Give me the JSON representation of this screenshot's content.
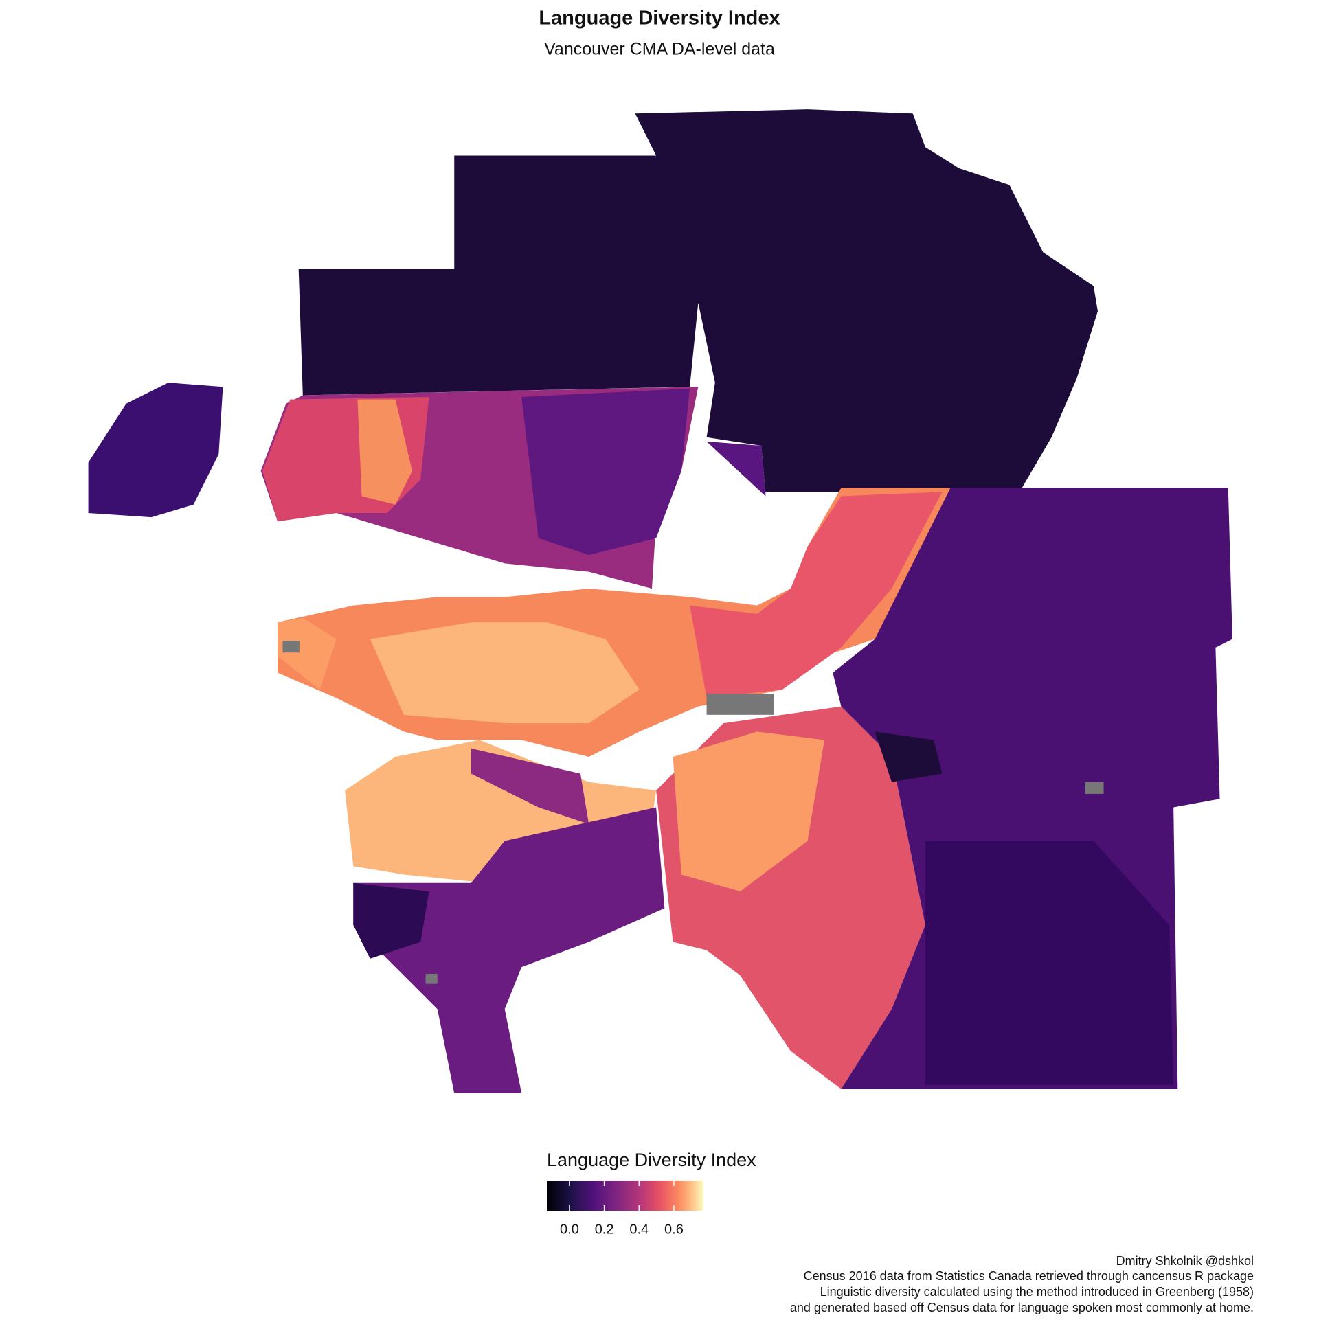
{
  "chart_data": {
    "type": "choropleth",
    "title": "Language Diversity Index",
    "subtitle": "Vancouver CMA DA-level data",
    "legend_title": "Language Diversity Index",
    "legend_lim": [
      -0.13,
      0.77
    ],
    "legend_ticks": [
      {
        "value": 0,
        "label": "0.0"
      },
      0.2,
      0.4,
      0.6
    ],
    "caption": [
      "Dmitry Shkolnik @dshkol",
      "Census 2016 data from Statistics Canada retrieved through cancensus R package",
      "Linguistic diversity calculated using the method introduced in Greenberg (1958)",
      "and generated based off Census data for language spoken most commonly at home."
    ]
  }
}
